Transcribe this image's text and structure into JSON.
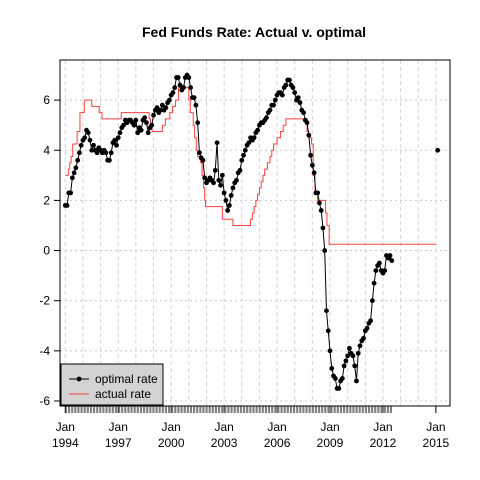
{
  "chart_data": {
    "type": "line",
    "title": "Fed Funds Rate: Actual v. optimal",
    "xlabel": "",
    "ylabel": "",
    "xlim": [
      1993.7,
      2015.8
    ],
    "ylim": [
      -6.2,
      7.6
    ],
    "grid": true,
    "legend_position": "bottom-left",
    "y_ticks": [
      -6,
      -4,
      -2,
      0,
      2,
      4,
      6
    ],
    "x_ticks": [
      {
        "value": 1994,
        "label_month": "Jan",
        "label_year": "1994"
      },
      {
        "value": 1997,
        "label_month": "Jan",
        "label_year": "1997"
      },
      {
        "value": 2000,
        "label_month": "Jan",
        "label_year": "2000"
      },
      {
        "value": 2003,
        "label_month": "Jan",
        "label_year": "2003"
      },
      {
        "value": 2006,
        "label_month": "Jan",
        "label_year": "2006"
      },
      {
        "value": 2009,
        "label_month": "Jan",
        "label_year": "2009"
      },
      {
        "value": 2012,
        "label_month": "Jan",
        "label_year": "2012"
      },
      {
        "value": 2015,
        "label_month": "Jan",
        "label_year": "2015"
      }
    ],
    "series": [
      {
        "name": "optimal rate",
        "color": "#000000",
        "style": "line+points",
        "points": [
          [
            1994.0,
            1.8
          ],
          [
            1994.1,
            1.8
          ],
          [
            1994.2,
            2.3
          ],
          [
            1994.3,
            2.3
          ],
          [
            1994.4,
            2.9
          ],
          [
            1994.5,
            3.1
          ],
          [
            1994.6,
            3.3
          ],
          [
            1994.7,
            3.6
          ],
          [
            1994.8,
            3.9
          ],
          [
            1994.9,
            4.2
          ],
          [
            1995.0,
            4.4
          ],
          [
            1995.1,
            4.5
          ],
          [
            1995.2,
            4.8
          ],
          [
            1995.3,
            4.7
          ],
          [
            1995.4,
            4.4
          ],
          [
            1995.5,
            4.0
          ],
          [
            1995.6,
            4.2
          ],
          [
            1995.7,
            4.0
          ],
          [
            1995.8,
            3.9
          ],
          [
            1995.9,
            4.1
          ],
          [
            1996.0,
            4.0
          ],
          [
            1996.1,
            3.9
          ],
          [
            1996.2,
            4.0
          ],
          [
            1996.3,
            3.9
          ],
          [
            1996.4,
            3.6
          ],
          [
            1996.5,
            3.6
          ],
          [
            1996.6,
            3.9
          ],
          [
            1996.7,
            4.3
          ],
          [
            1996.8,
            4.4
          ],
          [
            1996.9,
            4.2
          ],
          [
            1997.0,
            4.5
          ],
          [
            1997.1,
            4.7
          ],
          [
            1997.2,
            4.9
          ],
          [
            1997.3,
            5.0
          ],
          [
            1997.4,
            5.2
          ],
          [
            1997.5,
            5.1
          ],
          [
            1997.6,
            5.2
          ],
          [
            1997.7,
            5.2
          ],
          [
            1997.8,
            5.1
          ],
          [
            1997.9,
            5.0
          ],
          [
            1998.0,
            5.2
          ],
          [
            1998.1,
            4.7
          ],
          [
            1998.2,
            4.9
          ],
          [
            1998.3,
            4.8
          ],
          [
            1998.4,
            5.2
          ],
          [
            1998.5,
            5.3
          ],
          [
            1998.6,
            5.1
          ],
          [
            1998.7,
            4.7
          ],
          [
            1998.8,
            4.9
          ],
          [
            1998.9,
            5.0
          ],
          [
            1999.0,
            5.4
          ],
          [
            1999.1,
            5.6
          ],
          [
            1999.2,
            5.7
          ],
          [
            1999.3,
            5.5
          ],
          [
            1999.4,
            5.6
          ],
          [
            1999.5,
            5.8
          ],
          [
            1999.6,
            5.6
          ],
          [
            1999.7,
            5.7
          ],
          [
            1999.8,
            5.9
          ],
          [
            1999.9,
            6.0
          ],
          [
            2000.0,
            6.2
          ],
          [
            2000.1,
            6.3
          ],
          [
            2000.2,
            6.5
          ],
          [
            2000.3,
            6.9
          ],
          [
            2000.4,
            6.9
          ],
          [
            2000.5,
            6.6
          ],
          [
            2000.6,
            6.4
          ],
          [
            2000.7,
            6.5
          ],
          [
            2000.8,
            6.9
          ],
          [
            2000.9,
            7.0
          ],
          [
            2001.0,
            6.9
          ],
          [
            2001.1,
            6.5
          ],
          [
            2001.2,
            6.1
          ],
          [
            2001.3,
            6.1
          ],
          [
            2001.4,
            5.8
          ],
          [
            2001.5,
            5.1
          ],
          [
            2001.6,
            3.9
          ],
          [
            2001.7,
            3.7
          ],
          [
            2001.8,
            3.6
          ],
          [
            2001.9,
            2.9
          ],
          [
            2002.0,
            2.7
          ],
          [
            2002.1,
            2.8
          ],
          [
            2002.2,
            2.9
          ],
          [
            2002.3,
            2.8
          ],
          [
            2002.4,
            2.7
          ],
          [
            2002.5,
            3.2
          ],
          [
            2002.6,
            4.3
          ],
          [
            2002.7,
            2.8
          ],
          [
            2002.8,
            2.6
          ],
          [
            2002.9,
            3.0
          ],
          [
            2003.0,
            2.3
          ],
          [
            2003.1,
            2.0
          ],
          [
            2003.2,
            1.6
          ],
          [
            2003.3,
            1.8
          ],
          [
            2003.4,
            2.2
          ],
          [
            2003.5,
            2.5
          ],
          [
            2003.6,
            2.7
          ],
          [
            2003.7,
            2.8
          ],
          [
            2003.8,
            3.1
          ],
          [
            2003.9,
            3.2
          ],
          [
            2004.0,
            3.6
          ],
          [
            2004.1,
            3.8
          ],
          [
            2004.2,
            4.0
          ],
          [
            2004.3,
            4.2
          ],
          [
            2004.4,
            4.3
          ],
          [
            2004.5,
            4.5
          ],
          [
            2004.6,
            4.4
          ],
          [
            2004.7,
            4.5
          ],
          [
            2004.8,
            4.7
          ],
          [
            2004.9,
            4.8
          ],
          [
            2005.0,
            5.0
          ],
          [
            2005.1,
            5.1
          ],
          [
            2005.2,
            5.1
          ],
          [
            2005.3,
            5.2
          ],
          [
            2005.4,
            5.3
          ],
          [
            2005.5,
            5.5
          ],
          [
            2005.6,
            5.6
          ],
          [
            2005.7,
            5.8
          ],
          [
            2005.8,
            5.8
          ],
          [
            2005.9,
            6.0
          ],
          [
            2006.0,
            6.2
          ],
          [
            2006.1,
            6.3
          ],
          [
            2006.2,
            6.3
          ],
          [
            2006.3,
            6.2
          ],
          [
            2006.4,
            6.5
          ],
          [
            2006.5,
            6.6
          ],
          [
            2006.6,
            6.8
          ],
          [
            2006.7,
            6.8
          ],
          [
            2006.8,
            6.6
          ],
          [
            2006.9,
            6.5
          ],
          [
            2007.0,
            6.3
          ],
          [
            2007.1,
            6.0
          ],
          [
            2007.2,
            6.1
          ],
          [
            2007.3,
            5.9
          ],
          [
            2007.4,
            5.6
          ],
          [
            2007.5,
            5.5
          ],
          [
            2007.6,
            5.2
          ],
          [
            2007.7,
            5.1
          ],
          [
            2007.8,
            4.6
          ],
          [
            2007.9,
            3.8
          ],
          [
            2008.0,
            3.4
          ],
          [
            2008.1,
            3.1
          ],
          [
            2008.2,
            2.3
          ],
          [
            2008.3,
            2.3
          ],
          [
            2008.4,
            1.9
          ],
          [
            2008.5,
            1.6
          ],
          [
            2008.6,
            0.9
          ],
          [
            2008.7,
            0.0
          ],
          [
            2008.8,
            -2.4
          ],
          [
            2008.9,
            -3.2
          ],
          [
            2009.0,
            -4.0
          ],
          [
            2009.1,
            -4.7
          ],
          [
            2009.2,
            -5.0
          ],
          [
            2009.3,
            -5.1
          ],
          [
            2009.4,
            -5.5
          ],
          [
            2009.5,
            -5.5
          ],
          [
            2009.6,
            -5.2
          ],
          [
            2009.7,
            -5.1
          ],
          [
            2009.8,
            -4.6
          ],
          [
            2009.9,
            -4.4
          ],
          [
            2010.0,
            -4.2
          ],
          [
            2010.1,
            -3.9
          ],
          [
            2010.2,
            -4.1
          ],
          [
            2010.3,
            -4.2
          ],
          [
            2010.4,
            -4.6
          ],
          [
            2010.5,
            -5.2
          ],
          [
            2010.6,
            -4.1
          ],
          [
            2010.7,
            -3.8
          ],
          [
            2010.8,
            -3.6
          ],
          [
            2010.9,
            -3.5
          ],
          [
            2011.0,
            -3.2
          ],
          [
            2011.1,
            -3.1
          ],
          [
            2011.2,
            -2.9
          ],
          [
            2011.3,
            -2.8
          ],
          [
            2011.4,
            -2.0
          ],
          [
            2011.5,
            -1.3
          ],
          [
            2011.6,
            -0.8
          ],
          [
            2011.7,
            -0.6
          ],
          [
            2011.8,
            -0.5
          ],
          [
            2011.9,
            -0.8
          ],
          [
            2012.0,
            -0.9
          ],
          [
            2012.1,
            -0.8
          ],
          [
            2012.2,
            -0.2
          ],
          [
            2012.3,
            -0.3
          ],
          [
            2012.4,
            -0.2
          ],
          [
            2012.5,
            -0.4
          ]
        ],
        "isolated_points": [
          [
            2015.1,
            4.0
          ]
        ]
      },
      {
        "name": "actual rate",
        "color": "#ff4040",
        "style": "step",
        "points": [
          [
            1994.0,
            3.0
          ],
          [
            1994.1,
            3.0
          ],
          [
            1994.17,
            3.25
          ],
          [
            1994.25,
            3.5
          ],
          [
            1994.33,
            3.75
          ],
          [
            1994.42,
            4.25
          ],
          [
            1994.58,
            4.25
          ],
          [
            1994.67,
            4.75
          ],
          [
            1994.83,
            5.5
          ],
          [
            1995.08,
            6.0
          ],
          [
            1995.5,
            5.75
          ],
          [
            1995.92,
            5.5
          ],
          [
            1996.08,
            5.25
          ],
          [
            1997.17,
            5.5
          ],
          [
            1998.75,
            5.25
          ],
          [
            1998.83,
            5.0
          ],
          [
            1998.92,
            4.75
          ],
          [
            1999.5,
            5.0
          ],
          [
            1999.67,
            5.25
          ],
          [
            1999.92,
            5.5
          ],
          [
            2000.08,
            5.75
          ],
          [
            2000.25,
            6.0
          ],
          [
            2000.42,
            6.5
          ],
          [
            2001.0,
            6.0
          ],
          [
            2001.08,
            5.5
          ],
          [
            2001.25,
            5.0
          ],
          [
            2001.33,
            4.5
          ],
          [
            2001.42,
            4.0
          ],
          [
            2001.5,
            3.75
          ],
          [
            2001.67,
            3.5
          ],
          [
            2001.75,
            3.0
          ],
          [
            2001.83,
            2.5
          ],
          [
            2001.9,
            2.0
          ],
          [
            2001.95,
            1.75
          ],
          [
            2002.9,
            1.25
          ],
          [
            2003.5,
            1.0
          ],
          [
            2004.5,
            1.25
          ],
          [
            2004.6,
            1.5
          ],
          [
            2004.7,
            1.75
          ],
          [
            2004.8,
            2.0
          ],
          [
            2004.9,
            2.25
          ],
          [
            2005.0,
            2.5
          ],
          [
            2005.1,
            2.75
          ],
          [
            2005.2,
            3.0
          ],
          [
            2005.3,
            3.25
          ],
          [
            2005.45,
            3.5
          ],
          [
            2005.6,
            3.75
          ],
          [
            2005.7,
            4.0
          ],
          [
            2005.8,
            4.25
          ],
          [
            2006.0,
            4.5
          ],
          [
            2006.2,
            4.75
          ],
          [
            2006.35,
            5.0
          ],
          [
            2006.5,
            5.25
          ],
          [
            2007.7,
            4.75
          ],
          [
            2007.8,
            4.5
          ],
          [
            2007.95,
            4.25
          ],
          [
            2008.05,
            3.0
          ],
          [
            2008.15,
            2.25
          ],
          [
            2008.3,
            2.0
          ],
          [
            2008.75,
            1.5
          ],
          [
            2008.83,
            1.0
          ],
          [
            2008.95,
            0.25
          ],
          [
            2015.0,
            0.25
          ]
        ]
      }
    ]
  }
}
